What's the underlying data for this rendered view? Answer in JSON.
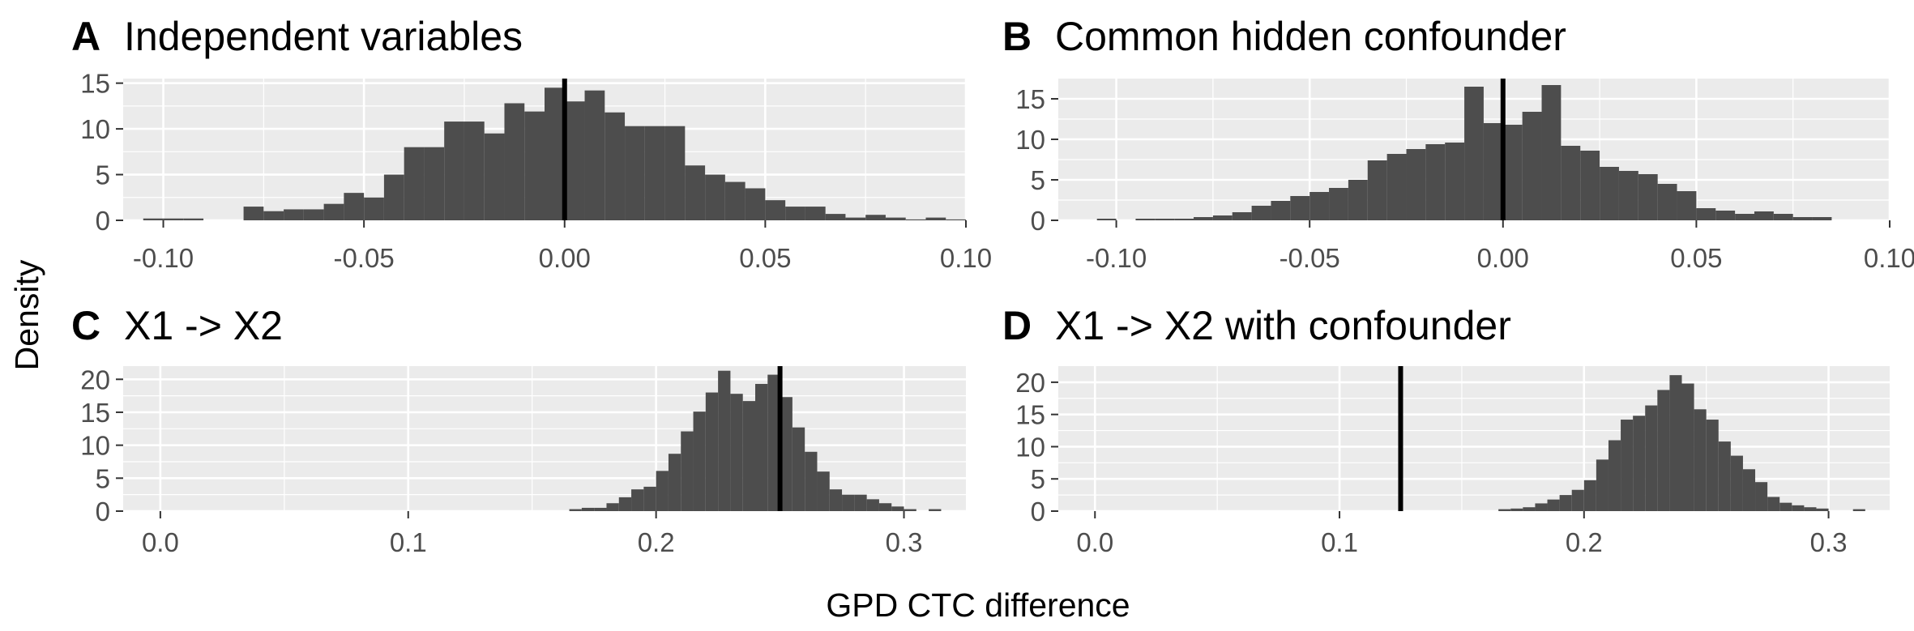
{
  "ylabel": "Density",
  "xlabel": "GPD CTC difference",
  "colors": {
    "panel_bg": "#ebebeb",
    "grid": "#ffffff",
    "bar": "#4d4d4d",
    "reference_line": "#000000",
    "tick_label": "#4d4d4d"
  },
  "chart_data": [
    {
      "type": "bar",
      "letter": "A",
      "title": "Independent variables",
      "xlim": [
        -0.11,
        0.1
      ],
      "ylim": [
        0,
        15.5
      ],
      "xticks": [
        -0.1,
        -0.05,
        0.0,
        0.05,
        0.1
      ],
      "xtick_labels": [
        "-0.10",
        "-0.05",
        "0.00",
        "0.05",
        "0.10"
      ],
      "yticks": [
        0,
        5,
        10,
        15
      ],
      "ytick_labels": [
        "0",
        "5",
        "10",
        "15"
      ],
      "bin_width": 0.005,
      "bin_starts": [
        -0.105,
        -0.1,
        -0.095,
        -0.08,
        -0.075,
        -0.07,
        -0.065,
        -0.06,
        -0.055,
        -0.05,
        -0.045,
        -0.04,
        -0.035,
        -0.03,
        -0.025,
        -0.02,
        -0.015,
        -0.01,
        -0.005,
        0,
        0.005,
        0.01,
        0.015,
        0.02,
        0.025,
        0.03,
        0.035,
        0.04,
        0.045,
        0.05,
        0.055,
        0.06,
        0.065,
        0.07,
        0.075,
        0.08,
        0.085,
        0.09,
        0.095
      ],
      "density": [
        0.2,
        0.2,
        0.2,
        1.5,
        1.0,
        1.2,
        1.2,
        1.8,
        3.0,
        2.5,
        5.0,
        8.0,
        8.0,
        10.8,
        10.8,
        9.5,
        12.8,
        11.9,
        14.5,
        13.0,
        14.2,
        11.8,
        10.3,
        10.3,
        10.3,
        6.0,
        5.0,
        4.2,
        3.5,
        2.2,
        1.5,
        1.5,
        0.7,
        0.3,
        0.6,
        0.3,
        0.1,
        0.3,
        0.1
      ],
      "reference_line_x": 0.0
    },
    {
      "type": "bar",
      "letter": "B",
      "title": "Common hidden confounder",
      "xlim": [
        -0.115,
        0.1
      ],
      "ylim": [
        0,
        17.5
      ],
      "xticks": [
        -0.1,
        -0.05,
        0.0,
        0.05,
        0.1
      ],
      "xtick_labels": [
        "-0.10",
        "-0.05",
        "0.00",
        "0.05",
        "0.10"
      ],
      "yticks": [
        0,
        5,
        10,
        15
      ],
      "ytick_labels": [
        "0",
        "5",
        "10",
        "15"
      ],
      "bin_width": 0.005,
      "bin_starts": [
        -0.105,
        -0.095,
        -0.09,
        -0.085,
        -0.08,
        -0.075,
        -0.07,
        -0.065,
        -0.06,
        -0.055,
        -0.05,
        -0.045,
        -0.04,
        -0.035,
        -0.03,
        -0.025,
        -0.02,
        -0.015,
        -0.01,
        -0.005,
        0,
        0.005,
        0.01,
        0.015,
        0.02,
        0.025,
        0.03,
        0.035,
        0.04,
        0.045,
        0.05,
        0.055,
        0.06,
        0.065,
        0.07,
        0.075,
        0.08
      ],
      "density": [
        0.2,
        0.2,
        0.2,
        0.2,
        0.4,
        0.6,
        1.0,
        1.8,
        2.4,
        3.0,
        3.5,
        4.0,
        5.0,
        7.4,
        8.2,
        8.8,
        9.4,
        9.6,
        16.5,
        12.0,
        11.8,
        13.4,
        16.7,
        9.2,
        8.6,
        6.6,
        6.1,
        5.7,
        4.5,
        3.6,
        1.5,
        1.2,
        0.8,
        1.1,
        0.8,
        0.4,
        0.4
      ],
      "reference_line_x": 0.0
    },
    {
      "type": "bar",
      "letter": "C",
      "title": "X1 -> X2",
      "xlim": [
        -0.015,
        0.325
      ],
      "ylim": [
        0,
        22
      ],
      "xticks": [
        0.0,
        0.1,
        0.2,
        0.3
      ],
      "xtick_labels": [
        "0.0",
        "0.1",
        "0.2",
        "0.3"
      ],
      "yticks": [
        0,
        5,
        10,
        15,
        20
      ],
      "ytick_labels": [
        "0",
        "5",
        "10",
        "15",
        "20"
      ],
      "bin_width": 0.005,
      "bin_starts": [
        0.165,
        0.17,
        0.175,
        0.18,
        0.185,
        0.19,
        0.195,
        0.2,
        0.205,
        0.21,
        0.215,
        0.22,
        0.225,
        0.23,
        0.235,
        0.24,
        0.245,
        0.25,
        0.255,
        0.26,
        0.265,
        0.27,
        0.275,
        0.28,
        0.285,
        0.29,
        0.295,
        0.3,
        0.31
      ],
      "density": [
        0.3,
        0.5,
        0.5,
        1.2,
        2.1,
        3.3,
        3.7,
        6.1,
        8.7,
        12.1,
        15.1,
        18.0,
        21.3,
        17.8,
        16.7,
        19.3,
        20.7,
        17.3,
        12.7,
        9.0,
        6.0,
        3.3,
        2.5,
        2.5,
        1.8,
        1.2,
        0.7,
        0.3,
        0.3
      ],
      "reference_line_x": 0.25
    },
    {
      "type": "bar",
      "letter": "D",
      "title": "X1 -> X2 with confounder",
      "xlim": [
        -0.015,
        0.325
      ],
      "ylim": [
        0,
        22.5
      ],
      "xticks": [
        0.0,
        0.1,
        0.2,
        0.3
      ],
      "xtick_labels": [
        "0.0",
        "0.1",
        "0.2",
        "0.3"
      ],
      "yticks": [
        0,
        5,
        10,
        15,
        20
      ],
      "ytick_labels": [
        "0",
        "5",
        "10",
        "15",
        "20"
      ],
      "bin_width": 0.005,
      "bin_starts": [
        0.165,
        0.17,
        0.175,
        0.18,
        0.185,
        0.19,
        0.195,
        0.2,
        0.205,
        0.21,
        0.215,
        0.22,
        0.225,
        0.23,
        0.235,
        0.24,
        0.245,
        0.25,
        0.255,
        0.26,
        0.265,
        0.27,
        0.275,
        0.28,
        0.285,
        0.29,
        0.295,
        0.31
      ],
      "density": [
        0.3,
        0.4,
        0.6,
        1.2,
        1.8,
        2.5,
        3.3,
        4.8,
        8.0,
        11.0,
        14.2,
        14.8,
        16.4,
        18.8,
        21.1,
        19.8,
        15.8,
        14.2,
        10.8,
        8.6,
        6.5,
        4.5,
        2.2,
        1.3,
        0.9,
        0.6,
        0.4,
        0.3
      ],
      "reference_line_x": 0.125
    }
  ]
}
